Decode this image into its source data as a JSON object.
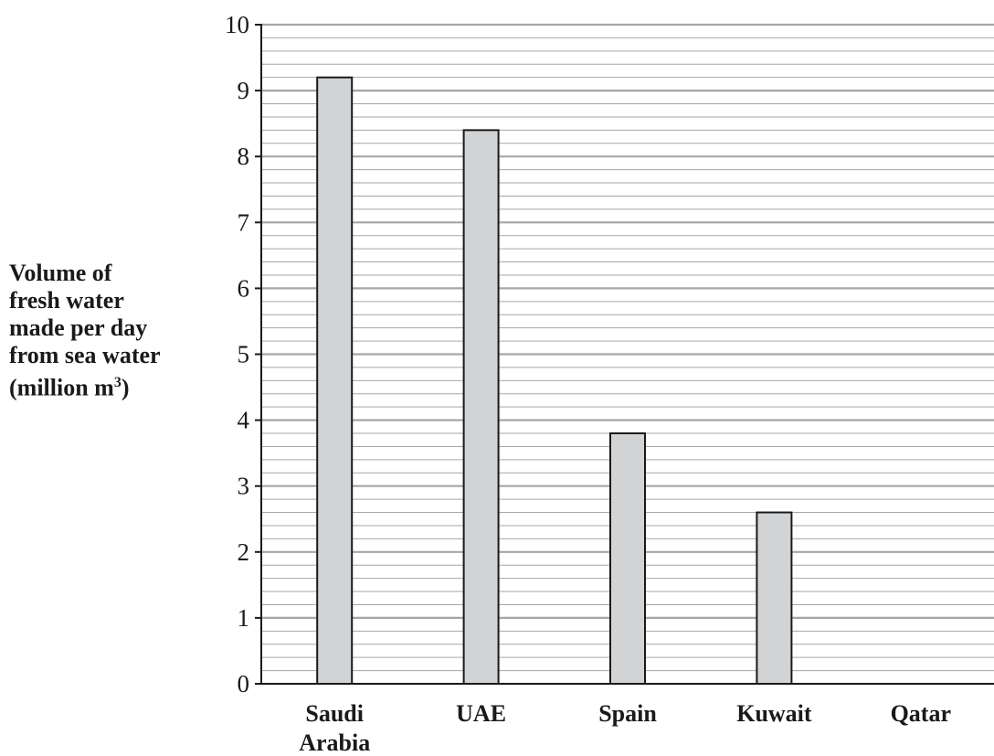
{
  "chart_data": {
    "type": "bar",
    "categories": [
      [
        "Saudi",
        "Arabia"
      ],
      [
        "UAE"
      ],
      [
        "Spain"
      ],
      [
        "Kuwait"
      ],
      [
        "Qatar"
      ]
    ],
    "values": [
      9.2,
      8.4,
      3.8,
      2.6,
      null
    ],
    "ylabel_lines": [
      "Volume of",
      "fresh water",
      "made per day",
      "from sea water"
    ],
    "ylabel_unit": {
      "prefix": "(million m",
      "sup": "3",
      "suffix": ")"
    },
    "ylim": [
      0,
      10
    ],
    "yticks": [
      0,
      1,
      2,
      3,
      4,
      5,
      6,
      7,
      8,
      9,
      10
    ],
    "minor_step": 0.2,
    "grid": true,
    "colors": {
      "bar_fill": "#d2d3d5",
      "bar_stroke": "#1a1a1a",
      "major_grid": "#a6a6a6",
      "minor_grid": "#a6a6a6",
      "axis": "#1a1a1a"
    }
  }
}
